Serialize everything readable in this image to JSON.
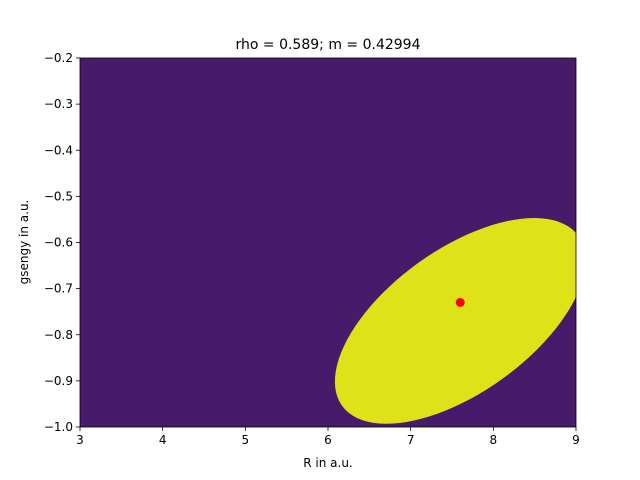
{
  "chart_data": {
    "type": "contour",
    "title": "rho = 0.589;  m = 0.42994",
    "xlabel": "R in a.u.",
    "ylabel": "gsengy in a.u.",
    "xlim": [
      3,
      9
    ],
    "ylim": [
      -1.0,
      -0.2
    ],
    "x_ticks": [
      "3",
      "4",
      "5",
      "6",
      "7",
      "8",
      "9"
    ],
    "y_ticks": [
      "−1.0",
      "−0.9",
      "−0.8",
      "−0.7",
      "−0.6",
      "−0.5",
      "−0.4",
      "−0.3",
      "−0.2"
    ],
    "grid": false,
    "colormap": "viridis",
    "background_color": "#481a6c",
    "gaussian": {
      "center_x": 7.6,
      "center_y": -0.77,
      "sigma_x": 0.51,
      "sigma_y": 0.075,
      "correlation": 0.589
    },
    "contour_levels": [
      {
        "level": 0.84,
        "color": "#46327e"
      },
      {
        "level": 0.67,
        "color": "#365c8d"
      },
      {
        "level": 0.5,
        "color": "#277f8e"
      },
      {
        "level": 0.34,
        "color": "#1fa187"
      },
      {
        "level": 0.17,
        "color": "#4ac16d"
      },
      {
        "level": 0.05,
        "color": "#bddf26"
      },
      {
        "level": 0.012,
        "color": "#dde318"
      }
    ],
    "marker": {
      "x": 7.6,
      "y": -0.73,
      "color": "#ff0000"
    }
  }
}
